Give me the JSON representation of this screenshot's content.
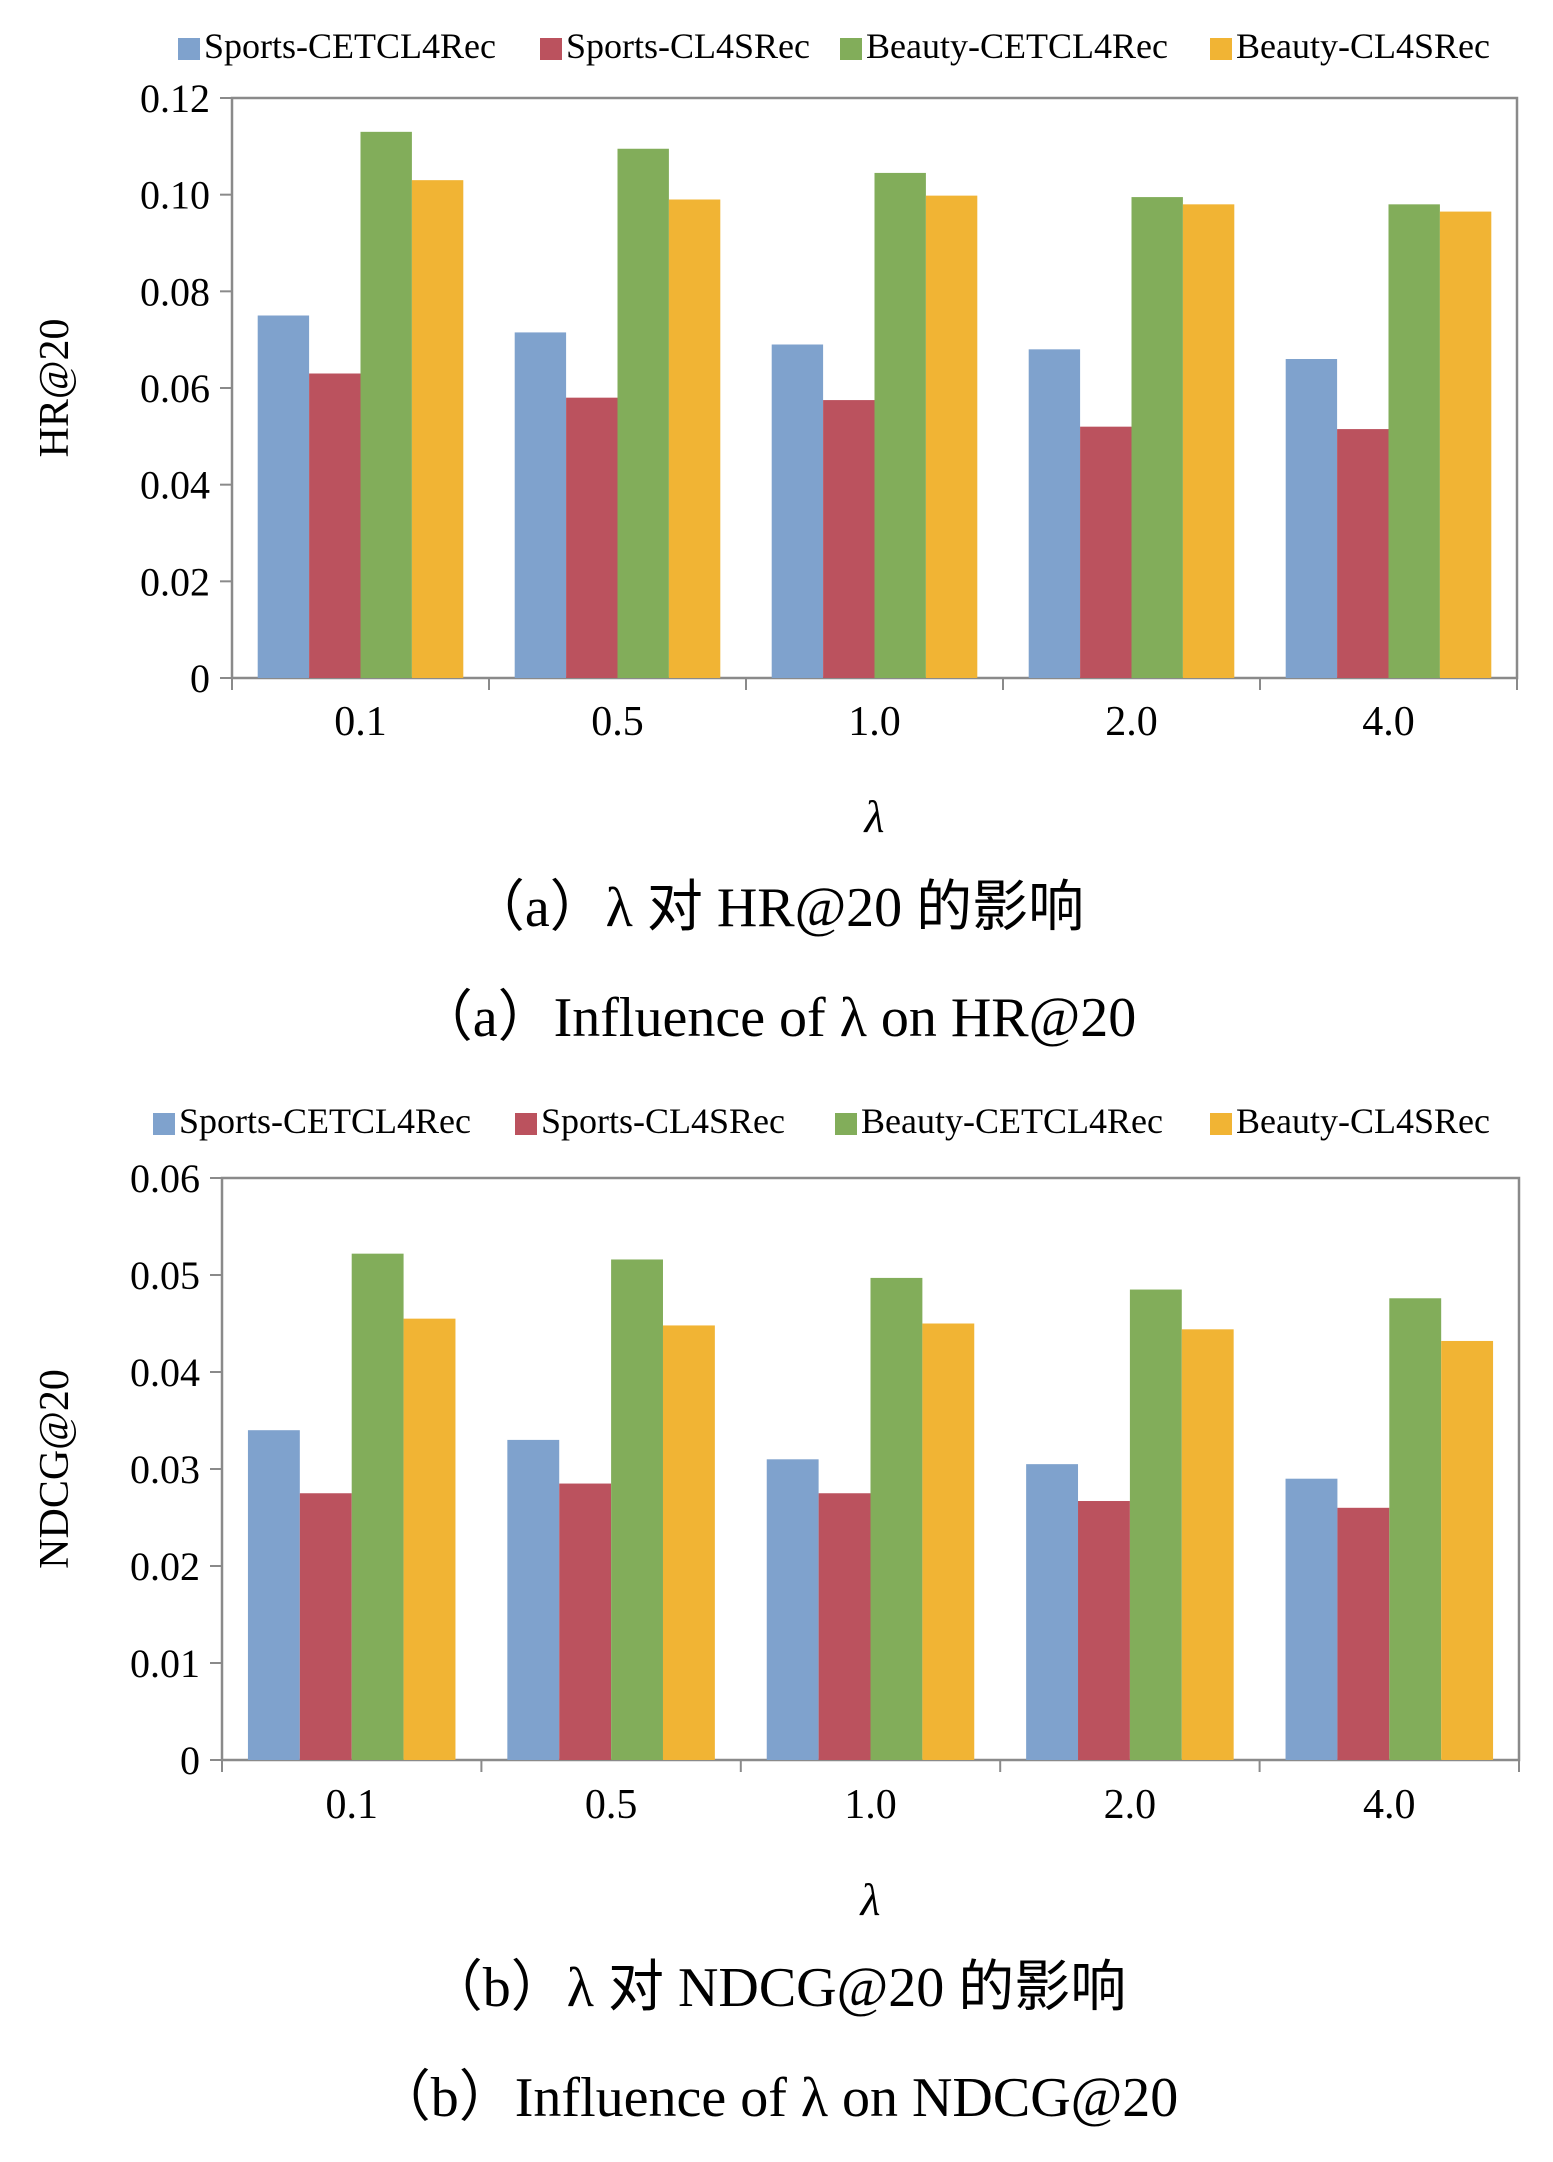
{
  "chart_data": [
    {
      "type": "bar",
      "categories": [
        "0.1",
        "0.5",
        "1.0",
        "2.0",
        "4.0"
      ],
      "series": [
        {
          "name": "Sports-CETCL4Rec",
          "color": "#7fa2cd",
          "values": [
            0.075,
            0.0715,
            0.069,
            0.068,
            0.066
          ]
        },
        {
          "name": "Sports-CL4SRec",
          "color": "#bb525e",
          "values": [
            0.063,
            0.058,
            0.0575,
            0.052,
            0.0515
          ]
        },
        {
          "name": "Beauty-CETCL4Rec",
          "color": "#82ad5a",
          "values": [
            0.113,
            0.1095,
            0.1045,
            0.0995,
            0.098
          ]
        },
        {
          "name": "Beauty-CL4SRec",
          "color": "#f1b434",
          "values": [
            0.103,
            0.099,
            0.0998,
            0.098,
            0.0965
          ]
        }
      ],
      "ylim": [
        0,
        0.12
      ],
      "yticks": [
        "0",
        "0.02",
        "0.04",
        "0.06",
        "0.08",
        "0.10",
        "0.12"
      ],
      "xlabel": "λ",
      "ylabel": "HR@20",
      "legend_position": "top",
      "grid": false,
      "caption_cn": "（a）λ 对 HR@20 的影响",
      "caption_en": "（a）Influence of λ on HR@20"
    },
    {
      "type": "bar",
      "categories": [
        "0.1",
        "0.5",
        "1.0",
        "2.0",
        "4.0"
      ],
      "series": [
        {
          "name": "Sports-CETCL4Rec",
          "color": "#7fa2cd",
          "values": [
            0.034,
            0.033,
            0.031,
            0.0305,
            0.029
          ]
        },
        {
          "name": "Sports-CL4SRec",
          "color": "#bb525e",
          "values": [
            0.0275,
            0.0285,
            0.0275,
            0.0267,
            0.026
          ]
        },
        {
          "name": "Beauty-CETCL4Rec",
          "color": "#82ad5a",
          "values": [
            0.0522,
            0.0516,
            0.0497,
            0.0485,
            0.0476
          ]
        },
        {
          "name": "Beauty-CL4SRec",
          "color": "#f1b434",
          "values": [
            0.0455,
            0.0448,
            0.045,
            0.0444,
            0.0432
          ]
        }
      ],
      "ylim": [
        0,
        0.06
      ],
      "yticks": [
        "0",
        "0.01",
        "0.02",
        "0.03",
        "0.04",
        "0.05",
        "0.06"
      ],
      "xlabel": "λ",
      "ylabel": "NDCG@20",
      "legend_position": "top",
      "grid": false,
      "caption_cn": "（b）λ 对 NDCG@20 的影响",
      "caption_en": "（b）Influence of λ on NDCG@20"
    }
  ]
}
